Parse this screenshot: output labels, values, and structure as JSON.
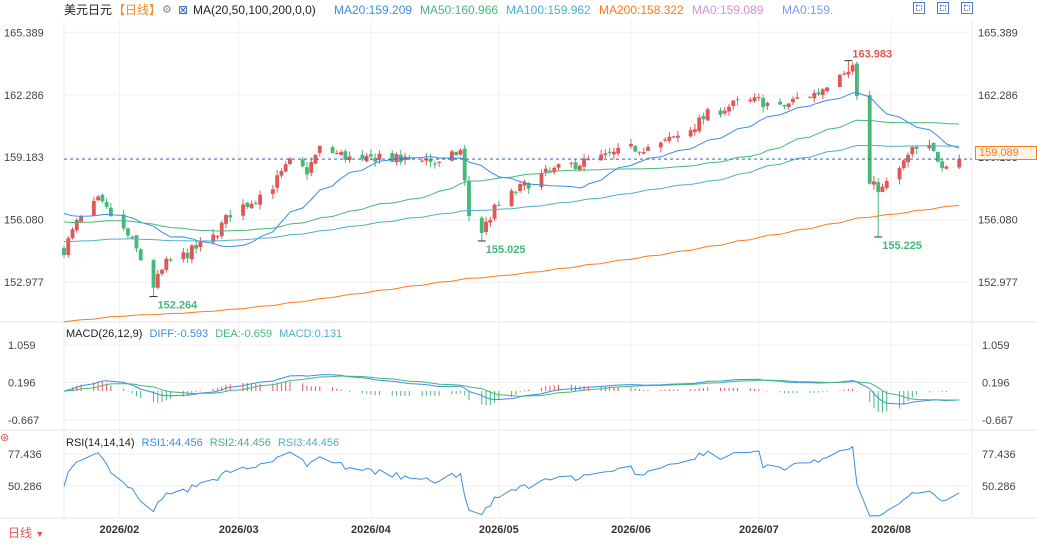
{
  "header": {
    "pair": "美元日元",
    "period": "【日线】",
    "ma_label": "MA(20,50,100,200,0,0)",
    "ma20": "MA20:159.209",
    "ma50": "MA50:160.966",
    "ma100": "MA100:159.962",
    "ma200": "MA200:158.322",
    "ma0a": "MA0:159.089",
    "ma0b": "MA0:159."
  },
  "macd": {
    "label": "MACD(26,12,9)",
    "diff": "DIFF:-0.593",
    "dea": "DEA:-0.659",
    "macd": "MACD:0.131"
  },
  "rsi": {
    "label": "RSI(14,14,14)",
    "rsi1": "RSI1:44.456",
    "rsi2": "RSI2:44.456",
    "rsi3": "RSI3:44.456"
  },
  "footer": {
    "period_button": "日线"
  },
  "colors": {
    "up": "#e35656",
    "down": "#46b87a",
    "ma20": "#3a8ee6",
    "ma50": "#46b87a",
    "ma100": "#4ab2c9",
    "ma200": "#ff7a1a",
    "ref": "#3565c4"
  },
  "chart_data": {
    "type": "candlestick",
    "x_ticks": [
      "2026/02",
      "2026/03",
      "2026/04",
      "2026/05",
      "2026/06",
      "2026/07",
      "2026/08"
    ],
    "y_ticks": [
      165.389,
      162.286,
      159.183,
      156.08,
      152.977
    ],
    "ylim": [
      151.0,
      166.0
    ],
    "current_price": 159.089,
    "annotations": [
      {
        "text": "163.983",
        "value": 163.983,
        "date": "2026-07-22",
        "kind": "high"
      },
      {
        "text": "152.264",
        "value": 152.264,
        "date": "2026-02-09",
        "kind": "low"
      },
      {
        "text": "155.025",
        "value": 155.025,
        "date": "2026-04-27",
        "kind": "low"
      },
      {
        "text": "155.225",
        "value": 155.225,
        "date": "2026-07-29",
        "kind": "low"
      }
    ],
    "close_path": [
      [
        "2026-01-19",
        154.6
      ],
      [
        "2026-01-22",
        155.9
      ],
      [
        "2026-01-27",
        157.0
      ],
      [
        "2026-01-30",
        156.3
      ],
      [
        "2026-02-04",
        155.0
      ],
      [
        "2026-02-09",
        152.8
      ],
      [
        "2026-02-12",
        153.9
      ],
      [
        "2026-02-17",
        154.4
      ],
      [
        "2026-02-23",
        155.2
      ],
      [
        "2026-02-27",
        156.4
      ],
      [
        "2026-03-04",
        157.0
      ],
      [
        "2026-03-09",
        157.8
      ],
      [
        "2026-03-13",
        158.9
      ],
      [
        "2026-03-17",
        158.5
      ],
      [
        "2026-03-20",
        159.6
      ],
      [
        "2026-03-25",
        159.3
      ],
      [
        "2026-03-30",
        158.9
      ],
      [
        "2026-04-03",
        159.3
      ],
      [
        "2026-04-08",
        159.0
      ],
      [
        "2026-04-13",
        159.2
      ],
      [
        "2026-04-17",
        158.8
      ],
      [
        "2026-04-22",
        159.5
      ],
      [
        "2026-04-24",
        156.3
      ],
      [
        "2026-04-27",
        155.5
      ],
      [
        "2026-04-30",
        156.6
      ],
      [
        "2026-05-05",
        157.5
      ],
      [
        "2026-05-11",
        158.3
      ],
      [
        "2026-05-18",
        158.8
      ],
      [
        "2026-05-26",
        159.2
      ],
      [
        "2026-06-01",
        159.6
      ],
      [
        "2026-06-08",
        159.8
      ],
      [
        "2026-06-15",
        160.6
      ],
      [
        "2026-06-19",
        161.3
      ],
      [
        "2026-06-25",
        161.8
      ],
      [
        "2026-07-01",
        162.0
      ],
      [
        "2026-07-06",
        161.6
      ],
      [
        "2026-07-10",
        162.1
      ],
      [
        "2026-07-15",
        162.4
      ],
      [
        "2026-07-20",
        163.5
      ],
      [
        "2026-07-23",
        163.7
      ],
      [
        "2026-07-27",
        157.8
      ],
      [
        "2026-07-30",
        157.6
      ],
      [
        "2026-08-03",
        158.6
      ],
      [
        "2026-08-06",
        159.5
      ],
      [
        "2026-08-10",
        159.6
      ],
      [
        "2026-08-13",
        158.9
      ],
      [
        "2026-08-17",
        159.089
      ]
    ],
    "ma_values": {
      "ma20": 159.209,
      "ma50": 160.966,
      "ma100": 159.962,
      "ma200": 158.322
    },
    "macd": {
      "y_ticks": [
        1.059,
        0.196,
        -0.667
      ],
      "diff": -0.593,
      "dea": -0.659,
      "macd": 0.131
    },
    "rsi": {
      "y_ticks": [
        77.436,
        50.286
      ],
      "rsi1": 44.456,
      "rsi2": 44.456,
      "rsi3": 44.456
    }
  }
}
